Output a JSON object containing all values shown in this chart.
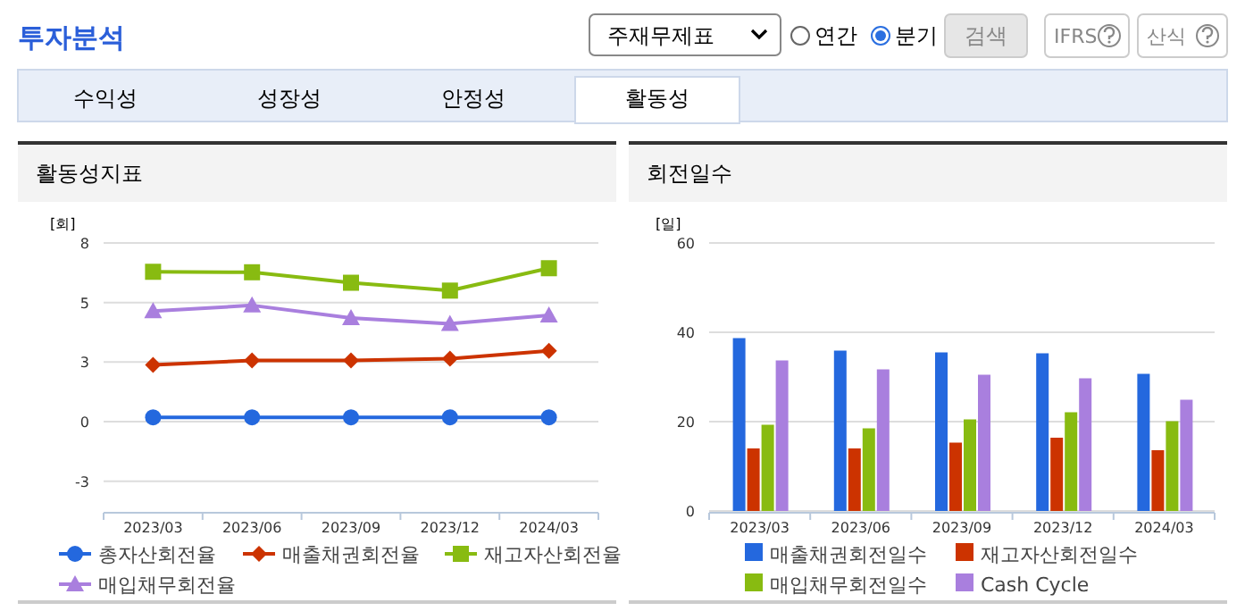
{
  "chart_data": [
    {
      "type": "other",
      "title": "투자분석",
      "annotations": [
        "주재무제표",
        "연간",
        "분기",
        "검색",
        "IFRS",
        "산식",
        "수익성",
        "성장성",
        "안정성",
        "활동성"
      ]
    },
    {
      "type": "line",
      "title": "활동성지표",
      "ylabel": "[회]",
      "categories": [
        "2023/03",
        "2023/06",
        "2023/09",
        "2023/12",
        "2024/03"
      ],
      "ylim": [
        -3.75,
        7.5
      ],
      "yticks": [
        {
          "value": 7.5,
          "label": "8"
        },
        {
          "value": 5,
          "label": "5"
        },
        {
          "value": 2.5,
          "label": "3"
        },
        0,
        {
          "value": -2.5,
          "label": "-3"
        }
      ],
      "grid": "y",
      "legend": "bottom",
      "series": [
        {
          "name": "총자산회전율",
          "color": "#2468de",
          "marker": "circle",
          "values": [
            0.18,
            0.18,
            0.18,
            0.18,
            0.18
          ]
        },
        {
          "name": "매출채권회전율",
          "color": "#cc3300",
          "marker": "diamond",
          "values": [
            2.38,
            2.57,
            2.57,
            2.64,
            2.97
          ]
        },
        {
          "name": "재고자산회전율",
          "color": "#88bb11",
          "marker": "square",
          "values": [
            6.29,
            6.27,
            5.83,
            5.5,
            6.44
          ]
        },
        {
          "name": "매입채무회전율",
          "color": "#a97fde",
          "marker": "triangle",
          "values": [
            4.64,
            4.88,
            4.35,
            4.11,
            4.46
          ]
        }
      ]
    },
    {
      "type": "bar",
      "title": "회전일수",
      "ylabel": "[일]",
      "categories": [
        "2023/03",
        "2023/06",
        "2023/09",
        "2023/12",
        "2024/03"
      ],
      "ylim": [
        0,
        60
      ],
      "yticks": [
        0,
        20,
        40,
        60
      ],
      "grid": "y",
      "legend": "bottom",
      "series": [
        {
          "name": "매출채권회전일수",
          "color": "#2468de",
          "values": [
            38.7,
            35.9,
            35.5,
            35.3,
            30.7
          ]
        },
        {
          "name": "재고자산회전일수",
          "color": "#cc3300",
          "values": [
            14.0,
            14.0,
            15.3,
            16.4,
            13.6
          ]
        },
        {
          "name": "매입채무회전일수",
          "color": "#88bb11",
          "values": [
            19.3,
            18.5,
            20.5,
            22.1,
            20.1
          ]
        },
        {
          "name": "Cash Cycle",
          "color": "#a97fde",
          "values": [
            33.7,
            31.7,
            30.5,
            29.7,
            24.9
          ]
        }
      ]
    }
  ]
}
